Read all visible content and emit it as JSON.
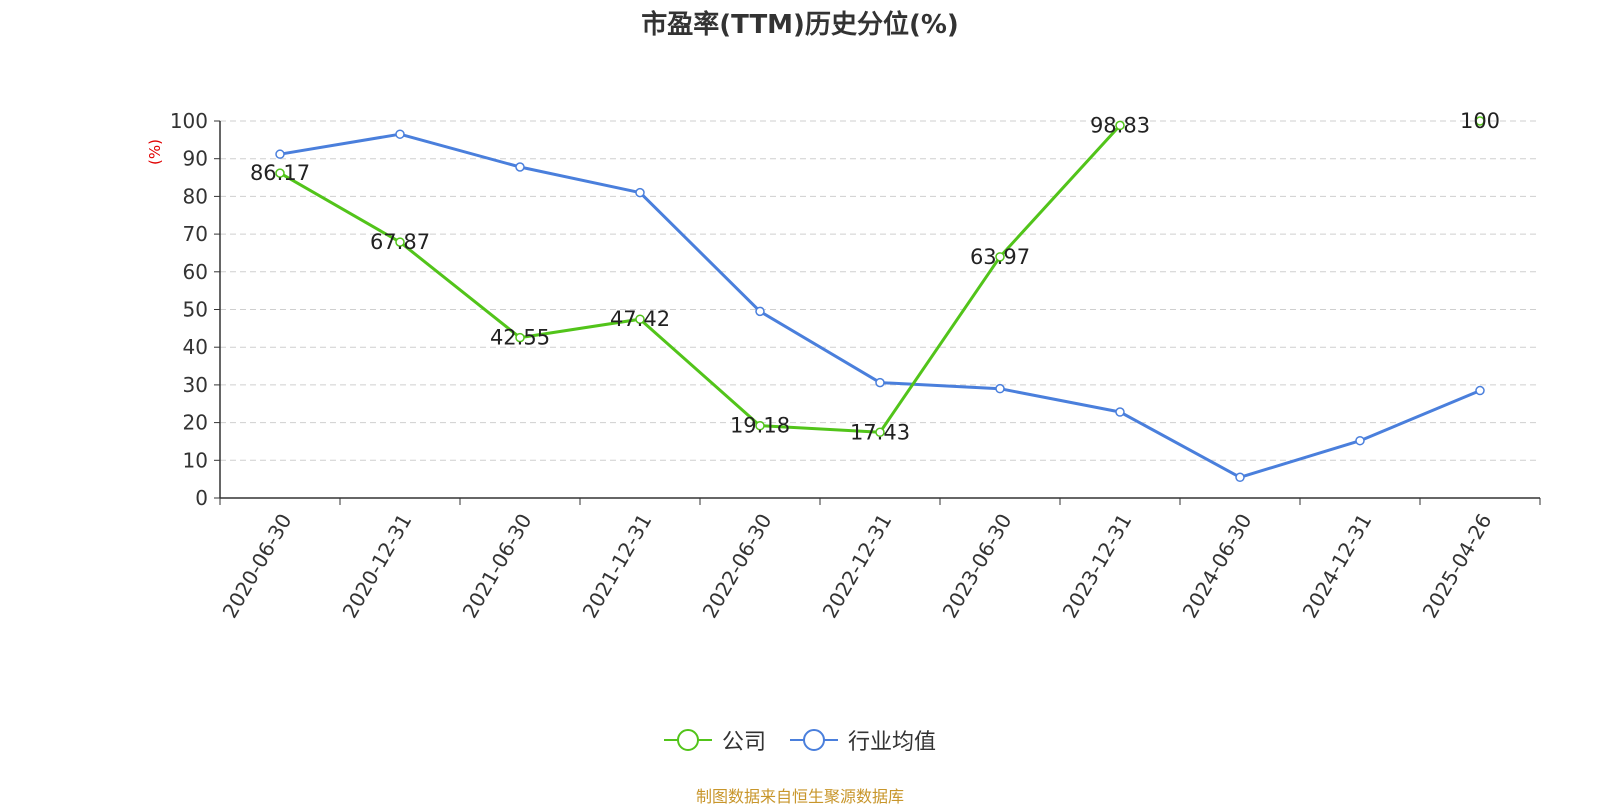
{
  "chart_data": {
    "type": "line",
    "title": "市盈率(TTM)历史分位(%)",
    "ylabel": "(%)",
    "ylim": [
      0,
      100
    ],
    "yticks": [
      0,
      10,
      20,
      30,
      40,
      50,
      60,
      70,
      80,
      90,
      100
    ],
    "categories": [
      "2020-06-30",
      "2020-12-31",
      "2021-06-30",
      "2021-12-31",
      "2022-06-30",
      "2022-12-31",
      "2023-06-30",
      "2023-12-31",
      "2024-06-30",
      "2024-12-31",
      "2025-04-26"
    ],
    "grid": true,
    "legend_position": "bottom",
    "series": [
      {
        "name": "公司",
        "color": "#52c41a",
        "values": [
          86.17,
          67.87,
          42.55,
          47.42,
          19.18,
          17.43,
          63.97,
          98.83,
          null,
          null,
          100
        ],
        "labels": [
          "86.17",
          "67.87",
          "42.55",
          "47.42",
          "19.18",
          "17.43",
          "63.97",
          "98.83",
          null,
          null,
          "100"
        ]
      },
      {
        "name": "行业均值",
        "color": "#4a7fdc",
        "values": [
          91.2,
          96.5,
          87.8,
          81.0,
          49.5,
          30.6,
          29.0,
          22.8,
          5.5,
          15.2,
          28.5
        ]
      }
    ],
    "source": "制图数据来自恒生聚源数据库"
  }
}
